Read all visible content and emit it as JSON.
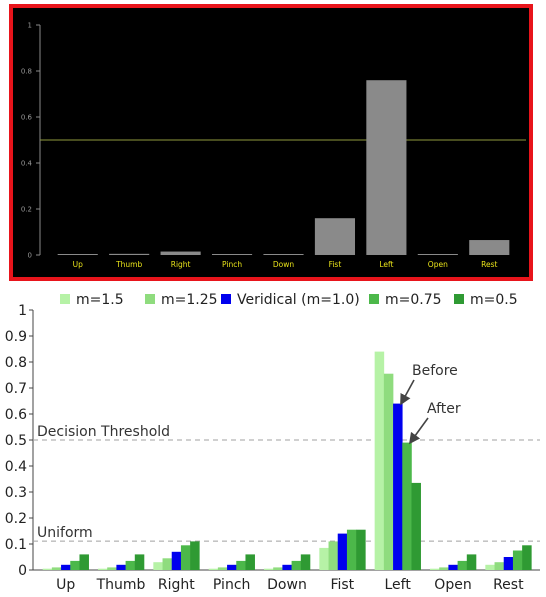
{
  "chart_data": [
    {
      "type": "bar",
      "categories": [
        "Up",
        "Thumb",
        "Right",
        "Pinch",
        "Down",
        "Fist",
        "Left",
        "Open",
        "Rest"
      ],
      "values": [
        0.0,
        0.005,
        0.015,
        0.0,
        0.0,
        0.16,
        0.76,
        0.0,
        0.065
      ],
      "ylim": [
        0,
        1
      ],
      "yticks": [
        0,
        0.2,
        0.4,
        0.6,
        0.8,
        1
      ],
      "ytick_labels": [
        "0",
        "0.2",
        "0.4",
        "0.6",
        "0.8",
        "1"
      ],
      "threshold": 0.5,
      "colors": {
        "background": "#000000",
        "border": "#e8141b",
        "bar": "#8a8a8a",
        "threshold": "#8f9a3e",
        "category_text": "#e8e21a",
        "axis": "#8a8a8a"
      }
    },
    {
      "type": "bar",
      "categories": [
        "Up",
        "Thumb",
        "Right",
        "Pinch",
        "Down",
        "Fist",
        "Left",
        "Open",
        "Rest"
      ],
      "series": [
        {
          "name": "m=1.5",
          "color": "#b6f2a6",
          "values": [
            0.005,
            0.005,
            0.03,
            0.005,
            0.005,
            0.085,
            0.84,
            0.005,
            0.02
          ]
        },
        {
          "name": "m=1.25",
          "color": "#8fdc7e",
          "values": [
            0.01,
            0.01,
            0.045,
            0.01,
            0.01,
            0.11,
            0.755,
            0.01,
            0.03
          ]
        },
        {
          "name": "Veridical (m=1.0)",
          "color": "#0000ee",
          "values": [
            0.02,
            0.02,
            0.07,
            0.02,
            0.02,
            0.14,
            0.64,
            0.02,
            0.05
          ]
        },
        {
          "name": "m=0.75",
          "color": "#4cb84a",
          "values": [
            0.035,
            0.035,
            0.095,
            0.035,
            0.035,
            0.155,
            0.49,
            0.035,
            0.075
          ]
        },
        {
          "name": "m=0.5",
          "color": "#2f9a33",
          "values": [
            0.06,
            0.06,
            0.11,
            0.06,
            0.06,
            0.155,
            0.335,
            0.06,
            0.095
          ]
        }
      ],
      "ylim": [
        0,
        1
      ],
      "yticks": [
        0,
        0.1,
        0.2,
        0.3,
        0.4,
        0.5,
        0.6,
        0.7,
        0.8,
        0.9,
        1
      ],
      "ytick_labels": [
        "0",
        "0.1",
        "0.2",
        "0.3",
        "0.4",
        "0.5",
        "0.6",
        "0.7",
        "0.8",
        "0.9",
        "1"
      ],
      "reference_lines": [
        {
          "label": "Decision Threshold",
          "value": 0.5
        },
        {
          "label": "Uniform",
          "value": 0.111
        }
      ],
      "annotations": [
        {
          "text": "Before",
          "series": "Veridical (m=1.0)",
          "category": "Left"
        },
        {
          "text": "After",
          "series": "m=0.75",
          "category": "Left"
        }
      ],
      "legend_position": "top",
      "grid": false
    }
  ]
}
